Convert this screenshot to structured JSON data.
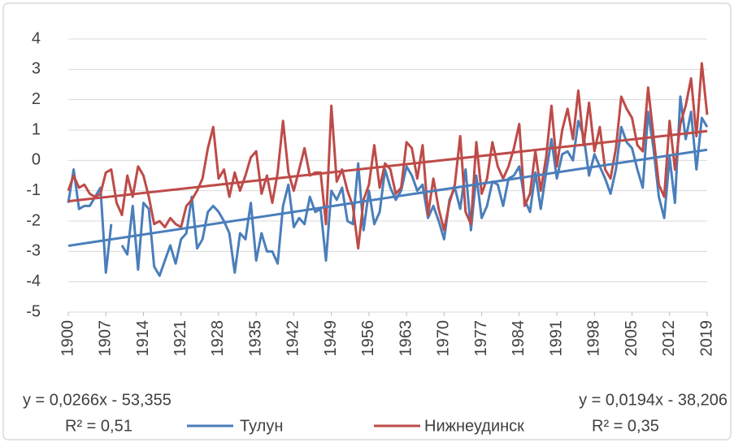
{
  "chart_data": {
    "type": "line",
    "x": [
      1900,
      1901,
      1902,
      1903,
      1904,
      1905,
      1906,
      1907,
      1908,
      1909,
      1910,
      1911,
      1912,
      1913,
      1914,
      1915,
      1916,
      1917,
      1918,
      1919,
      1920,
      1921,
      1922,
      1923,
      1924,
      1925,
      1926,
      1927,
      1928,
      1929,
      1930,
      1931,
      1932,
      1933,
      1934,
      1935,
      1936,
      1937,
      1938,
      1939,
      1940,
      1941,
      1942,
      1943,
      1944,
      1945,
      1946,
      1947,
      1948,
      1949,
      1950,
      1951,
      1952,
      1953,
      1954,
      1955,
      1956,
      1957,
      1958,
      1959,
      1960,
      1961,
      1962,
      1963,
      1964,
      1965,
      1966,
      1967,
      1968,
      1969,
      1970,
      1971,
      1972,
      1973,
      1974,
      1975,
      1976,
      1977,
      1978,
      1979,
      1980,
      1981,
      1982,
      1983,
      1984,
      1985,
      1986,
      1987,
      1988,
      1989,
      1990,
      1991,
      1992,
      1993,
      1994,
      1995,
      1996,
      1997,
      1998,
      1999,
      2000,
      2001,
      2002,
      2003,
      2004,
      2005,
      2006,
      2007,
      2008,
      2009,
      2010,
      2011,
      2012,
      2013,
      2014,
      2015,
      2016,
      2017,
      2018,
      2019
    ],
    "series": [
      {
        "name": "Тулун",
        "color": "#4a7ebb",
        "values": [
          -1.4,
          -0.3,
          -1.6,
          -1.5,
          -1.5,
          -1.2,
          -0.9,
          -3.7,
          -2.1,
          null,
          -2.8,
          -3.1,
          -1.5,
          -3.6,
          -1.4,
          -1.6,
          -3.5,
          -3.8,
          -3.3,
          -2.8,
          -3.4,
          -2.6,
          -2.4,
          -1.2,
          -2.9,
          -2.6,
          -1.7,
          -1.5,
          -1.7,
          -2.0,
          -2.4,
          -3.7,
          -2.4,
          -2.6,
          -1.4,
          -3.3,
          -2.4,
          -3.0,
          -3.0,
          -3.4,
          -1.5,
          -0.8,
          -2.2,
          -1.9,
          -2.1,
          -1.2,
          -1.7,
          -1.6,
          -3.3,
          -1.0,
          -1.3,
          -0.9,
          -2.0,
          -2.1,
          -0.1,
          -2.3,
          -1.0,
          -2.1,
          -1.7,
          -0.3,
          -0.9,
          -1.3,
          -1.0,
          -0.2,
          -0.5,
          -1.0,
          -0.8,
          -1.9,
          -1.5,
          -2.0,
          -2.6,
          -1.3,
          -0.9,
          -1.6,
          -0.3,
          -2.3,
          -0.5,
          -1.9,
          -1.5,
          -0.7,
          -0.8,
          -1.5,
          -0.6,
          -0.5,
          -0.2,
          -1.3,
          -1.7,
          -0.4,
          -1.6,
          -0.4,
          0.7,
          -0.6,
          0.2,
          0.3,
          0.0,
          1.3,
          0.8,
          -0.5,
          0.2,
          -0.2,
          -0.6,
          -1.1,
          -0.3,
          1.1,
          0.6,
          0.4,
          -0.3,
          -0.9,
          1.6,
          0.4,
          -1.2,
          -1.9,
          0.1,
          -1.4,
          2.1,
          0.7,
          1.6,
          -0.3,
          1.4,
          1.1
        ],
        "trend": {
          "slope": 0.0266,
          "intercept": -53.355,
          "equation": "y = 0,0266x - 53,355",
          "r2": 0.51,
          "r2_label": "R² = 0,51"
        }
      },
      {
        "name": "Нижнеудинск",
        "color": "#be4b48",
        "values": [
          -1.0,
          -0.5,
          -0.9,
          -0.8,
          -1.1,
          -1.2,
          -1.1,
          -0.4,
          -0.3,
          -1.4,
          -1.8,
          -0.5,
          -1.2,
          -0.2,
          -0.5,
          -1.2,
          -2.1,
          -2.0,
          -2.2,
          -1.9,
          -2.1,
          -2.2,
          -1.5,
          -1.3,
          -1.0,
          -0.6,
          0.4,
          1.1,
          -0.6,
          -0.3,
          -1.2,
          -0.4,
          -1.0,
          -0.5,
          0.1,
          0.3,
          -1.1,
          -0.5,
          -1.4,
          -0.4,
          1.3,
          -0.4,
          -1.0,
          -0.3,
          0.4,
          -0.5,
          -0.4,
          -0.4,
          -2.1,
          1.8,
          -0.7,
          -0.3,
          -1.0,
          -1.5,
          -2.9,
          -1.3,
          -0.8,
          0.5,
          -0.9,
          -0.1,
          -0.3,
          -1.1,
          -0.9,
          0.6,
          0.4,
          -0.6,
          0.5,
          -1.8,
          -0.6,
          -1.6,
          -2.3,
          -1.4,
          -0.8,
          0.8,
          -1.7,
          -2.1,
          0.6,
          -1.1,
          -0.6,
          0.6,
          -0.2,
          -0.6,
          -0.2,
          0.4,
          1.2,
          -1.5,
          -1.1,
          0.3,
          -1.0,
          0.1,
          1.8,
          -0.2,
          1.0,
          1.7,
          0.7,
          2.3,
          0.5,
          1.9,
          0.3,
          1.1,
          -0.3,
          -0.6,
          0.4,
          2.1,
          1.7,
          1.4,
          0.5,
          0.3,
          2.4,
          0.8,
          -0.8,
          -1.2,
          1.3,
          -0.3,
          1.2,
          1.8,
          2.7,
          0.8,
          3.2,
          1.5
        ],
        "trend": {
          "slope": 0.0194,
          "intercept": -38.206,
          "equation": "y = 0,0194x - 38,206",
          "r2": 0.35,
          "r2_label": "R² = 0,35"
        }
      }
    ],
    "xlim": [
      1900,
      2019
    ],
    "xticks": [
      1900,
      1907,
      1914,
      1921,
      1928,
      1935,
      1942,
      1949,
      1956,
      1963,
      1970,
      1977,
      1984,
      1991,
      1998,
      2005,
      2012,
      2019
    ],
    "ylim": [
      -5,
      4
    ],
    "yticks": [
      -5,
      -4,
      -3,
      -2,
      -1,
      0,
      1,
      2,
      3,
      4
    ],
    "grid": true
  }
}
